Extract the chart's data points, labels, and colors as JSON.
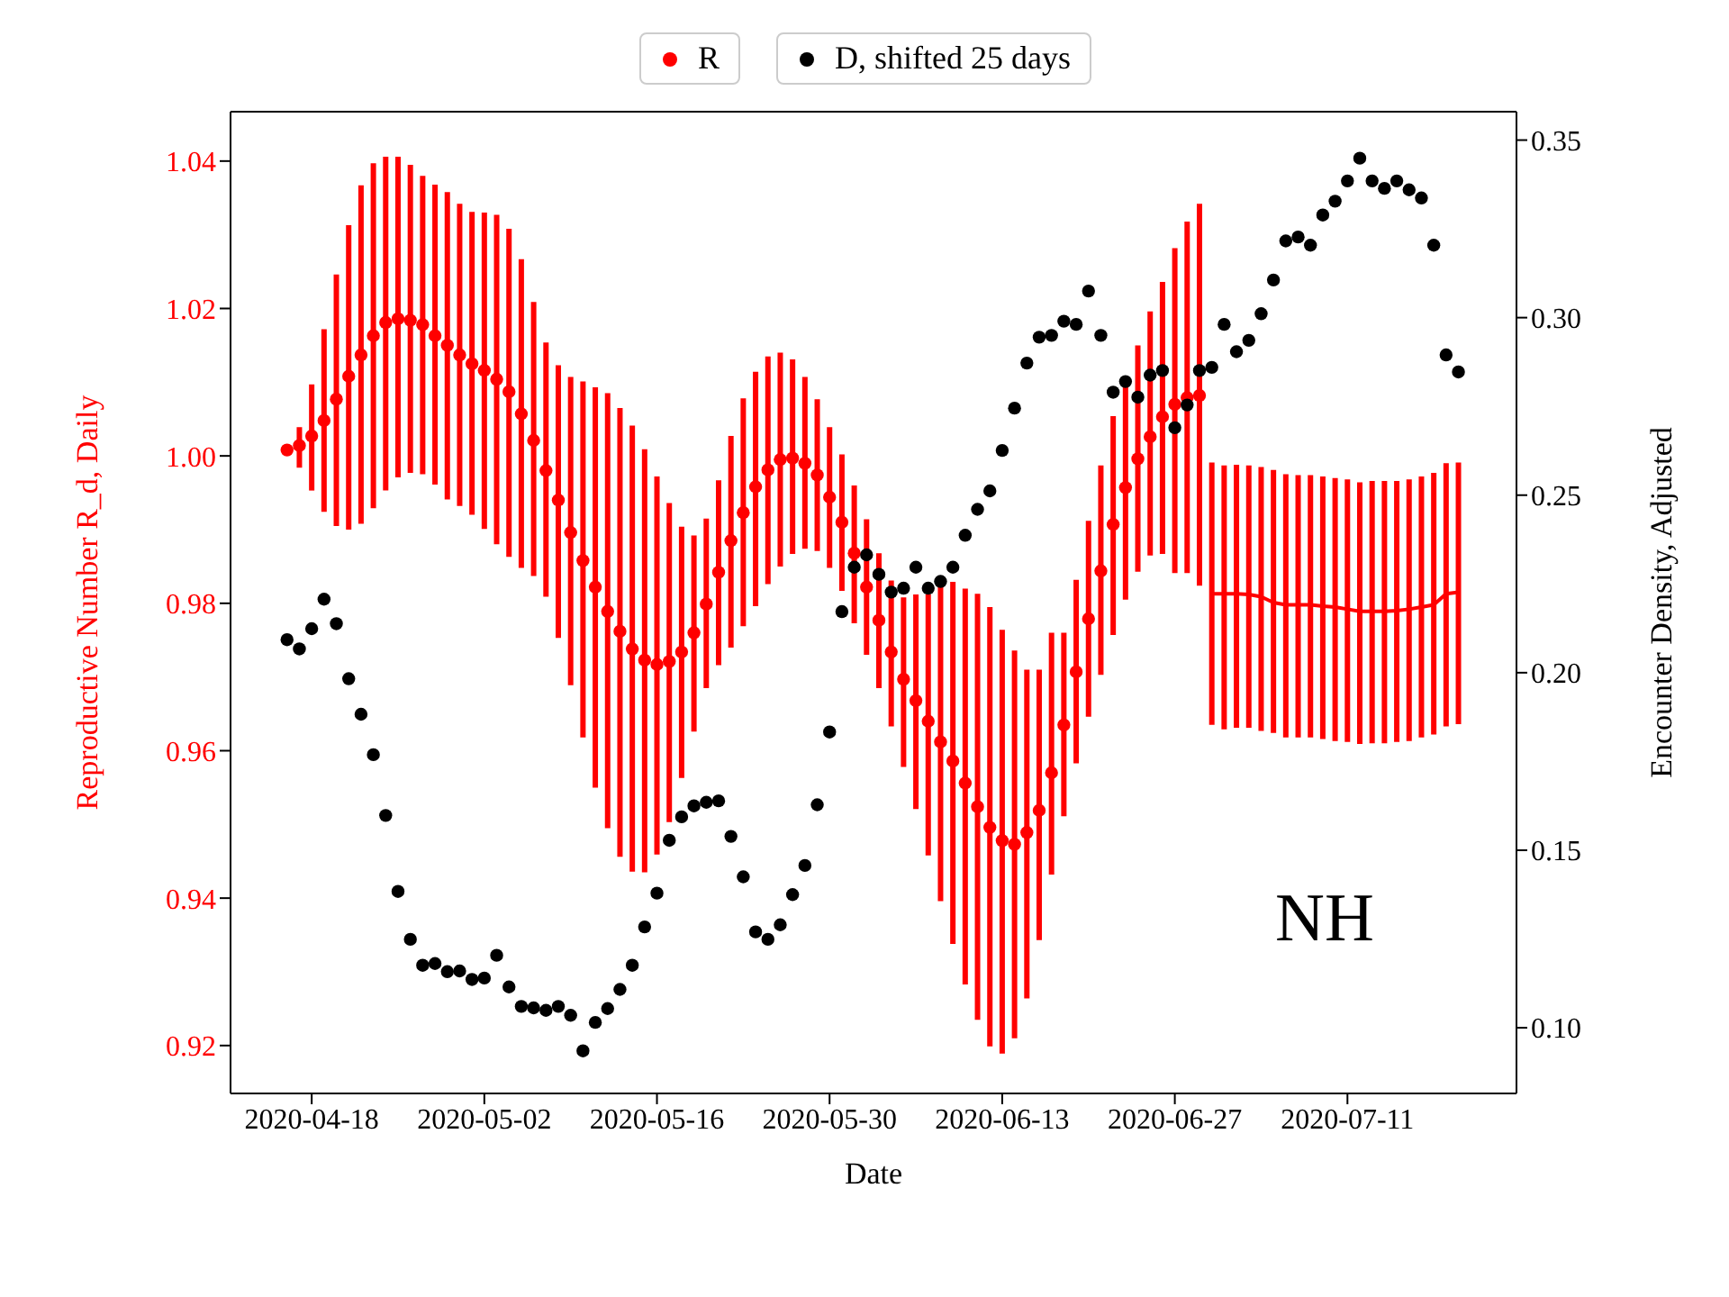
{
  "chart_data": {
    "type": "scatter",
    "xlabel": "Date",
    "ylabel": "Reproductive Number R_d, Daily",
    "y2label": "Encounter Density, Adjusted",
    "annotations": [
      "NH"
    ],
    "x": [
      "2020-04-16",
      "2020-04-17",
      "2020-04-18",
      "2020-04-19",
      "2020-04-20",
      "2020-04-21",
      "2020-04-22",
      "2020-04-23",
      "2020-04-24",
      "2020-04-25",
      "2020-04-26",
      "2020-04-27",
      "2020-04-28",
      "2020-04-29",
      "2020-04-30",
      "2020-05-01",
      "2020-05-02",
      "2020-05-03",
      "2020-05-04",
      "2020-05-05",
      "2020-05-06",
      "2020-05-07",
      "2020-05-08",
      "2020-05-09",
      "2020-05-10",
      "2020-05-11",
      "2020-05-12",
      "2020-05-13",
      "2020-05-14",
      "2020-05-15",
      "2020-05-16",
      "2020-05-17",
      "2020-05-18",
      "2020-05-19",
      "2020-05-20",
      "2020-05-21",
      "2020-05-22",
      "2020-05-23",
      "2020-05-24",
      "2020-05-25",
      "2020-05-26",
      "2020-05-27",
      "2020-05-28",
      "2020-05-29",
      "2020-05-30",
      "2020-05-31",
      "2020-06-01",
      "2020-06-02",
      "2020-06-03",
      "2020-06-04",
      "2020-06-05",
      "2020-06-06",
      "2020-06-07",
      "2020-06-08",
      "2020-06-09",
      "2020-06-10",
      "2020-06-11",
      "2020-06-12",
      "2020-06-13",
      "2020-06-14",
      "2020-06-15",
      "2020-06-16",
      "2020-06-17",
      "2020-06-18",
      "2020-06-19",
      "2020-06-20",
      "2020-06-21",
      "2020-06-22",
      "2020-06-23",
      "2020-06-24",
      "2020-06-25",
      "2020-06-26",
      "2020-06-27",
      "2020-06-28",
      "2020-06-29",
      "2020-06-30",
      "2020-07-01",
      "2020-07-02",
      "2020-07-03",
      "2020-07-04",
      "2020-07-05",
      "2020-07-06",
      "2020-07-07",
      "2020-07-08",
      "2020-07-09",
      "2020-07-10",
      "2020-07-11",
      "2020-07-12",
      "2020-07-13",
      "2020-07-14",
      "2020-07-15",
      "2020-07-16",
      "2020-07-17",
      "2020-07-18",
      "2020-07-19",
      "2020-07-20"
    ],
    "xlim": [
      "2020-04-11T10:00",
      "2020-07-24T17:00"
    ],
    "xticks": [
      {
        "value": "2020-04-18",
        "label": "2020-04-18"
      },
      {
        "value": "2020-05-02",
        "label": "2020-05-02"
      },
      {
        "value": "2020-05-16",
        "label": "2020-05-16"
      },
      {
        "value": "2020-05-30",
        "label": "2020-05-30"
      },
      {
        "value": "2020-06-13",
        "label": "2020-06-13"
      },
      {
        "value": "2020-06-27",
        "label": "2020-06-27"
      },
      {
        "value": "2020-07-11",
        "label": "2020-07-11"
      }
    ],
    "ylim": [
      0.9135,
      1.0467
    ],
    "yticks": [
      0.92,
      0.94,
      0.96,
      0.98,
      {
        "value": 1,
        "label": "1.00"
      },
      1.02,
      1.04
    ],
    "y2lim": [
      0.0815,
      0.358
    ],
    "y2ticks": [
      {
        "value": 0.1,
        "label": "0.10"
      },
      0.15,
      {
        "value": 0.2,
        "label": "0.20"
      },
      0.25,
      {
        "value": 0.3,
        "label": "0.30"
      },
      0.35
    ],
    "grid": false,
    "legend": "top",
    "series": [
      {
        "name": "R",
        "marker": "circle",
        "color": "#ff0000",
        "values": [
          1.0008,
          1.0014,
          1.0027,
          1.0048,
          1.0077,
          1.0108,
          1.0137,
          1.0163,
          1.0181,
          1.0186,
          1.0184,
          1.0178,
          1.0163,
          1.015,
          1.0137,
          1.0125,
          1.0116,
          1.0104,
          1.0087,
          1.0057,
          1.0021,
          0.998,
          0.994,
          0.9896,
          0.9858,
          0.9822,
          0.9789,
          0.9762,
          0.9738,
          0.9723,
          0.9717,
          0.9721,
          0.9734,
          0.976,
          0.9799,
          0.9842,
          0.9885,
          0.9923,
          0.9958,
          0.9981,
          0.9995,
          0.9997,
          0.999,
          0.9974,
          0.9944,
          0.991,
          0.9868,
          0.9822,
          0.9777,
          0.9734,
          0.9697,
          0.9668,
          0.964,
          0.9612,
          0.9586,
          0.9556,
          0.9524,
          0.9496,
          0.9478,
          0.9473,
          0.9489,
          0.9519,
          0.957,
          0.9635,
          0.9707,
          0.9779,
          0.9844,
          0.9907,
          0.9957,
          0.9996,
          1.0026,
          1.0053,
          1.007,
          1.0079,
          1.0082,
          null,
          null,
          null,
          null,
          null,
          null,
          null,
          null,
          null,
          null,
          null,
          null,
          null,
          null,
          null,
          null,
          null,
          null,
          null,
          null,
          null
        ],
        "errors": [
          null,
          [
            0.9984,
            1.0039
          ],
          [
            0.9953,
            1.0097
          ],
          [
            0.9924,
            1.0172
          ],
          [
            0.9905,
            1.0246
          ],
          [
            0.99,
            1.0313
          ],
          [
            0.9908,
            1.0367
          ],
          [
            0.9929,
            1.0397
          ],
          [
            0.9953,
            1.0406
          ],
          [
            0.9971,
            1.0406
          ],
          [
            0.9977,
            1.0395
          ],
          [
            0.9975,
            1.038
          ],
          [
            0.9961,
            1.0368
          ],
          [
            0.9941,
            1.0358
          ],
          [
            0.9932,
            1.0342
          ],
          [
            0.992,
            1.0331
          ],
          [
            0.9901,
            1.033
          ],
          [
            0.988,
            1.0327
          ],
          [
            0.9863,
            1.0308
          ],
          [
            0.9848,
            1.0267
          ],
          [
            0.9837,
            1.0209
          ],
          [
            0.9809,
            1.0154
          ],
          [
            0.9753,
            1.0123
          ],
          [
            0.9689,
            1.0107
          ],
          [
            0.9618,
            1.0101
          ],
          [
            0.955,
            1.0093
          ],
          [
            0.9495,
            1.0085
          ],
          [
            0.9456,
            1.0065
          ],
          [
            0.9436,
            1.0041
          ],
          [
            0.9435,
            1.0009
          ],
          [
            0.9459,
            0.9972
          ],
          [
            0.9503,
            0.9936
          ],
          [
            0.9563,
            0.9904
          ],
          [
            0.9626,
            0.9892
          ],
          [
            0.9685,
            0.9915
          ],
          [
            0.9716,
            0.9967
          ],
          [
            0.974,
            1.0027
          ],
          [
            0.9769,
            1.0078
          ],
          [
            0.9796,
            1.0114
          ],
          [
            0.9826,
            1.0135
          ],
          [
            0.985,
            1.014
          ],
          [
            0.9867,
            1.0131
          ],
          [
            0.9874,
            1.0107
          ],
          [
            0.9871,
            1.0077
          ],
          [
            0.9848,
            1.0039
          ],
          [
            0.9817,
            1.0002
          ],
          [
            0.9773,
            0.996
          ],
          [
            0.973,
            0.9914
          ],
          [
            0.9685,
            0.9868
          ],
          [
            0.9633,
            0.9831
          ],
          [
            0.9578,
            0.9808
          ],
          [
            0.9521,
            0.9812
          ],
          [
            0.9458,
            0.9812
          ],
          [
            0.9396,
            0.9822
          ],
          [
            0.9338,
            0.9829
          ],
          [
            0.9283,
            0.982
          ],
          [
            0.9235,
            0.9813
          ],
          [
            0.9199,
            0.9795
          ],
          [
            0.9189,
            0.9764
          ],
          [
            0.921,
            0.9736
          ],
          [
            0.9264,
            0.971
          ],
          [
            0.9343,
            0.971
          ],
          [
            0.9432,
            0.976
          ],
          [
            0.9511,
            0.976
          ],
          [
            0.9583,
            0.9832
          ],
          [
            0.9646,
            0.9912
          ],
          [
            0.9703,
            0.9987
          ],
          [
            0.9757,
            1.0054
          ],
          [
            0.9805,
            1.0093
          ],
          [
            0.9843,
            1.015
          ],
          [
            0.9865,
            1.0196
          ],
          [
            0.9867,
            1.0236
          ],
          [
            0.9841,
            1.0282
          ],
          [
            0.9841,
            1.0318
          ],
          [
            0.9824,
            1.0342
          ],
          null,
          null,
          null,
          null,
          null,
          null,
          null,
          null,
          null,
          null,
          null,
          null,
          null,
          null,
          null,
          null,
          null,
          null,
          null,
          null,
          null
        ]
      },
      {
        "type": "line",
        "marker": "none",
        "color": "#ff0000",
        "values": [
          null,
          null,
          null,
          null,
          null,
          null,
          null,
          null,
          null,
          null,
          null,
          null,
          null,
          null,
          null,
          null,
          null,
          null,
          null,
          null,
          null,
          null,
          null,
          null,
          null,
          null,
          null,
          null,
          null,
          null,
          null,
          null,
          null,
          null,
          null,
          null,
          null,
          null,
          null,
          null,
          null,
          null,
          null,
          null,
          null,
          null,
          null,
          null,
          null,
          null,
          null,
          null,
          null,
          null,
          null,
          null,
          null,
          null,
          null,
          null,
          null,
          null,
          null,
          null,
          null,
          null,
          null,
          null,
          null,
          null,
          null,
          null,
          null,
          null,
          null,
          0.9813,
          0.9813,
          0.9813,
          0.9812,
          0.9809,
          0.9801,
          0.9798,
          0.9798,
          0.9798,
          0.9796,
          0.9795,
          0.9792,
          0.9789,
          0.9789,
          0.9789,
          0.979,
          0.9792,
          0.9795,
          0.9798,
          0.9813,
          0.9815
        ],
        "errors": [
          null,
          null,
          null,
          null,
          null,
          null,
          null,
          null,
          null,
          null,
          null,
          null,
          null,
          null,
          null,
          null,
          null,
          null,
          null,
          null,
          null,
          null,
          null,
          null,
          null,
          null,
          null,
          null,
          null,
          null,
          null,
          null,
          null,
          null,
          null,
          null,
          null,
          null,
          null,
          null,
          null,
          null,
          null,
          null,
          null,
          null,
          null,
          null,
          null,
          null,
          null,
          null,
          null,
          null,
          null,
          null,
          null,
          null,
          null,
          null,
          null,
          null,
          null,
          null,
          null,
          null,
          null,
          null,
          null,
          null,
          null,
          null,
          null,
          null,
          null,
          [
            0.9635,
            0.9991
          ],
          [
            0.9629,
            0.9987
          ],
          [
            0.9631,
            0.9988
          ],
          [
            0.9631,
            0.9987
          ],
          [
            0.9627,
            0.9985
          ],
          [
            0.9624,
            0.9981
          ],
          [
            0.9618,
            0.9975
          ],
          [
            0.9618,
            0.9974
          ],
          [
            0.9618,
            0.9974
          ],
          [
            0.9616,
            0.9972
          ],
          [
            0.9613,
            0.997
          ],
          [
            0.9612,
            0.9968
          ],
          [
            0.9609,
            0.9964
          ],
          [
            0.961,
            0.9966
          ],
          [
            0.961,
            0.9966
          ],
          [
            0.9612,
            0.9966
          ],
          [
            0.9613,
            0.9968
          ],
          [
            0.9618,
            0.9972
          ],
          [
            0.9622,
            0.9977
          ],
          [
            0.9633,
            0.999
          ],
          [
            0.9636,
            0.9991
          ]
        ]
      },
      {
        "name": "D, shifted 25 days",
        "marker": "circle",
        "axis": "y2",
        "color": "#000000",
        "values": [
          0.2093,
          0.2067,
          0.2124,
          0.2207,
          0.2138,
          0.1983,
          0.1883,
          0.1769,
          0.1598,
          0.1384,
          0.1249,
          0.1176,
          0.1181,
          0.1158,
          0.116,
          0.1136,
          0.114,
          0.1204,
          0.1115,
          0.106,
          0.1056,
          0.1049,
          0.106,
          0.1035,
          0.0935,
          0.1015,
          0.1054,
          0.1108,
          0.1176,
          0.1284,
          0.1379,
          0.1528,
          0.1594,
          0.1625,
          0.1635,
          0.1639,
          0.1539,
          0.1425,
          0.127,
          0.1249,
          0.129,
          0.1375,
          0.1457,
          0.1628,
          0.1833,
          0.2172,
          0.2297,
          0.2332,
          0.2277,
          0.2227,
          0.2238,
          0.2297,
          0.2238,
          0.2257,
          0.2297,
          0.2387,
          0.246,
          0.2512,
          0.2626,
          0.2745,
          0.2872,
          0.2945,
          0.295,
          0.299,
          0.2981,
          0.3075,
          0.295,
          0.279,
          0.282,
          0.2776,
          0.2838,
          0.2851,
          0.269,
          0.2754,
          0.2851,
          0.286,
          0.2981,
          0.2904,
          0.2936,
          0.3011,
          0.3106,
          0.3216,
          0.3227,
          0.3204,
          0.3289,
          0.3328,
          0.3385,
          0.3449,
          0.3385,
          0.3364,
          0.3385,
          0.336,
          0.3337,
          0.3204,
          0.2895,
          0.2847
        ]
      }
    ]
  }
}
